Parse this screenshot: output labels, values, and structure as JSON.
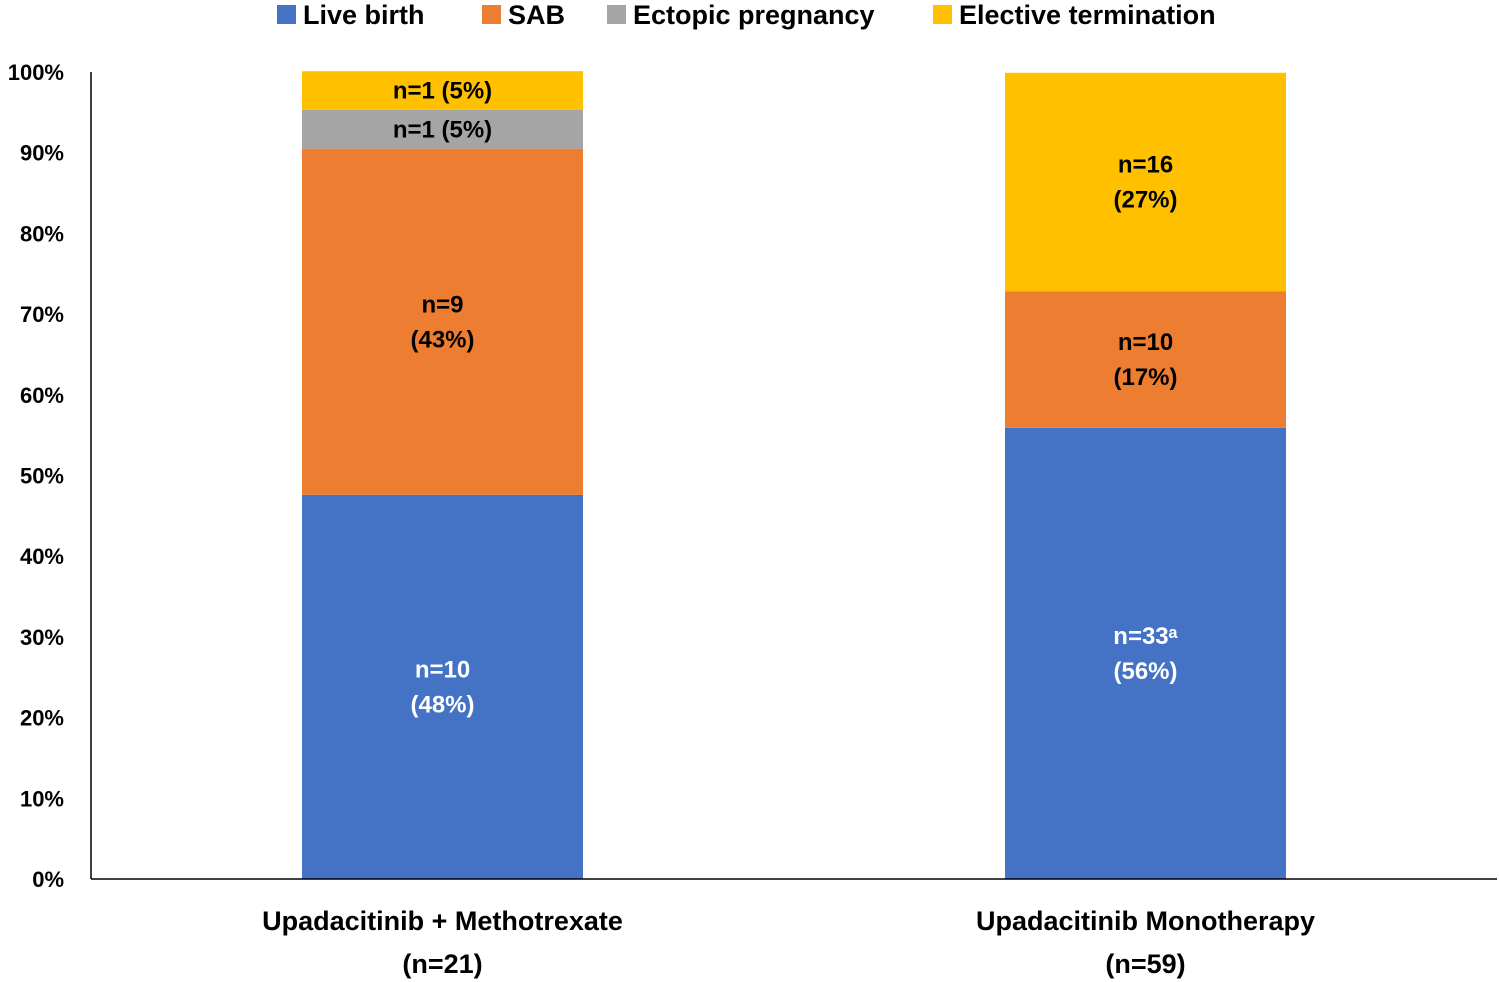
{
  "chart_data": {
    "type": "bar",
    "stacked": true,
    "categories": [
      {
        "line1": "Upadacitinib + Methotrexate",
        "line2": "(n=21)"
      },
      {
        "line1": "Upadacitinib Monotherapy",
        "line2": "(n=59)"
      }
    ],
    "series": [
      {
        "name": "Live birth",
        "color": "#4472C4",
        "label_color": "#ffffff",
        "values": [
          47.6,
          55.9
        ],
        "labels": [
          [
            "n=10",
            "(48%)"
          ],
          [
            "n=33ᵃ",
            "(56%)"
          ]
        ]
      },
      {
        "name": "SAB",
        "color": "#ED7D31",
        "label_color": "#000000",
        "values": [
          42.9,
          16.9
        ],
        "labels": [
          [
            "n=9",
            "(43%)"
          ],
          [
            "n=10",
            "(17%)"
          ]
        ]
      },
      {
        "name": "Ectopic pregnancy",
        "color": "#A5A5A5",
        "label_color": "#000000",
        "values": [
          4.8,
          0
        ],
        "labels": [
          [
            "n=1 (5%)"
          ],
          []
        ]
      },
      {
        "name": "Elective termination",
        "color": "#FFC000",
        "label_color": "#000000",
        "values": [
          4.8,
          27.1
        ],
        "labels": [
          [
            "n=1 (5%)"
          ],
          [
            "n=16",
            "(27%)"
          ]
        ]
      }
    ],
    "yticks": [
      "0%",
      "10%",
      "20%",
      "30%",
      "40%",
      "50%",
      "60%",
      "70%",
      "80%",
      "90%",
      "100%"
    ],
    "ylim": [
      0,
      100
    ],
    "legend_position": "top",
    "title": "",
    "xlabel": "",
    "ylabel": ""
  }
}
